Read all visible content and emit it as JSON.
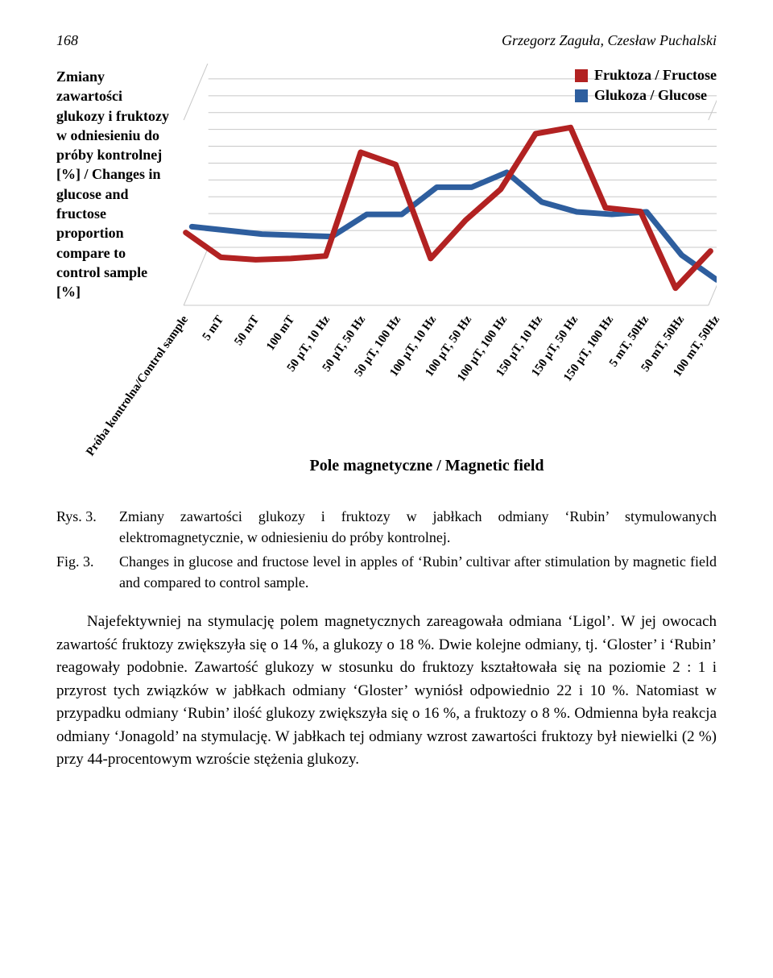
{
  "header": {
    "page_number": "168",
    "authors": "Grzegorz Zaguła, Czesław Puchalski"
  },
  "chart": {
    "type": "line",
    "y_axis_title": "Zmiany zawartości glukozy i fruktozy w odniesieniu do próby kontrolnej [%] / Changes in glucose and fructose proportion compare to control sample [%]",
    "x_axis_title": "Pole magnetyczne / Magnetic field",
    "legend": [
      {
        "label": "Fruktoza / Fructose",
        "color": "#b22222"
      },
      {
        "label": "Glukoza / Glucose",
        "color": "#2e5e9e"
      }
    ],
    "background_color": "#ffffff",
    "grid_color": "#c8c8c8",
    "line_width": 7,
    "ylim": [
      -30,
      120
    ],
    "n_gridlines": 15,
    "categories": [
      "Próba kontrolna/Control sample",
      "5 mT",
      "50 mT",
      "100 mT",
      "50 µT, 10 Hz",
      "50 µT, 50 Hz",
      "50 µT, 100 Hz",
      "100 µT, 10 Hz",
      "100 µT, 50 Hz",
      "100 µT, 100 Hz",
      "150 µT, 10 Hz",
      "150 µT, 50 Hz",
      "150 µT, 100 Hz",
      "5 mT, 50Hz",
      "50 mT, 50Hz",
      "100 mT, 50Hz"
    ],
    "series": {
      "fructose": [
        25,
        5,
        3,
        4,
        6,
        90,
        80,
        4,
        35,
        60,
        105,
        110,
        45,
        42,
        -20,
        10
      ],
      "glucose": [
        18,
        15,
        12,
        11,
        10,
        28,
        28,
        50,
        50,
        62,
        38,
        30,
        28,
        30,
        -5,
        -25
      ]
    },
    "perspective": {
      "depth_x": 2.5,
      "depth_y": -6,
      "n_back_lines": 12
    }
  },
  "caption_pl": {
    "key": "Rys. 3.",
    "text": "Zmiany zawartości glukozy i fruktozy w jabłkach odmiany ‘Rubin’ stymulowanych elektromagnetycznie, w odniesieniu do próby kontrolnej."
  },
  "caption_en": {
    "key": "Fig. 3.",
    "text": "Changes in glucose and fructose level in apples of ‘Rubin’ cultivar after stimulation  by magnetic field and compared to control sample."
  },
  "body_paragraph": "Najefektywniej na stymulację polem magnetycznych zareagowała odmiana ‘Ligol’. W jej owocach zawartość fruktozy zwiększyła się o 14 %, a glukozy o 18 %. Dwie kolejne odmiany, tj. ‘Gloster’ i ‘Rubin’ reagowały podobnie. Zawartość glukozy w stosunku do fruktozy kształtowała się na poziomie 2 : 1 i przyrost tych związków w jabłkach odmiany ‘Gloster’ wyniósł odpowiednio 22 i 10 %. Natomiast w przypadku odmiany ‘Rubin’ ilość glukozy zwiększyła się o 16 %, a fruktozy o 8 %. Odmienna była reakcja odmiany ‘Jonagold’ na stymulację. W jabłkach tej odmiany wzrost zawartości fruktozy był niewielki (2 %) przy 44-procentowym wzroście stężenia glukozy."
}
